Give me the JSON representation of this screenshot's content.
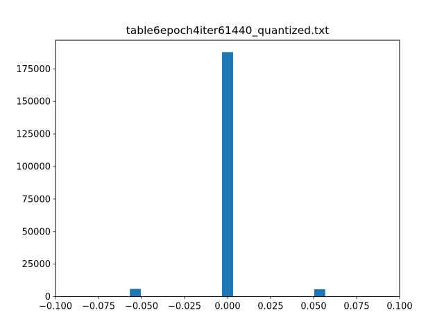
{
  "chart_data": {
    "type": "bar",
    "title": "table6epoch4iter61440_quantized.txt",
    "xlabel": "",
    "ylabel": "",
    "xlim": [
      -0.1,
      0.1
    ],
    "ylim": [
      0,
      197000
    ],
    "x_ticks": [
      "−0.100",
      "−0.075",
      "−0.050",
      "−0.025",
      "0.000",
      "0.025",
      "0.050",
      "0.075",
      "0.100"
    ],
    "x_tick_values": [
      -0.1,
      -0.075,
      -0.05,
      -0.025,
      0.0,
      0.025,
      0.05,
      0.075,
      0.1
    ],
    "y_ticks": [
      "0",
      "25000",
      "50000",
      "75000",
      "100000",
      "125000",
      "150000",
      "175000"
    ],
    "y_tick_values": [
      0,
      25000,
      50000,
      75000,
      100000,
      125000,
      150000,
      175000
    ],
    "bar_width": 0.0064,
    "bars": [
      {
        "x": -0.0568,
        "value": 6000
      },
      {
        "x": -0.0032,
        "value": 187800
      },
      {
        "x": 0.0504,
        "value": 5700
      }
    ],
    "color": "#1f77b4",
    "grid": false,
    "legend": "none"
  }
}
